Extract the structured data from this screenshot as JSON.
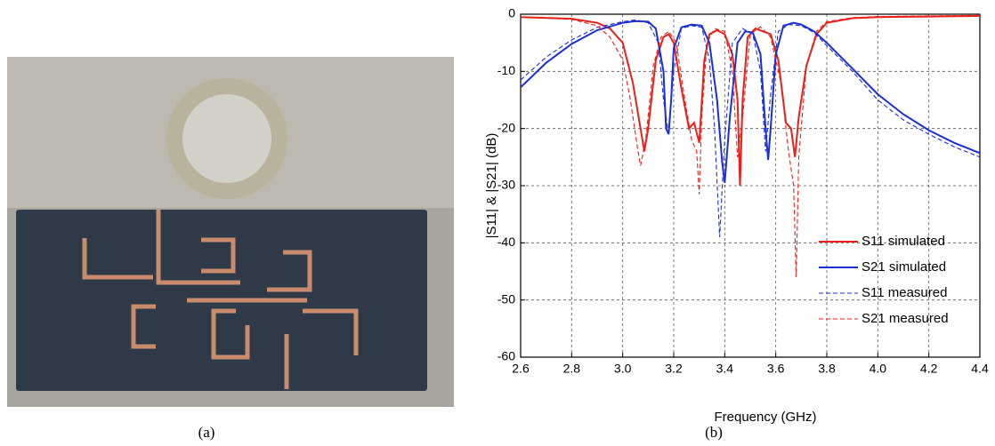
{
  "photo": {
    "caption": "(a)"
  },
  "chart_data": {
    "type": "line",
    "caption": "(b)",
    "xlabel": "Frequency (GHz)",
    "ylabel": "|S11| & |S21| (dB)",
    "xlim": [
      2.6,
      4.4
    ],
    "ylim": [
      -60,
      0
    ],
    "xticks": [
      2.6,
      2.8,
      {
        "value": 3,
        "label": "3.0"
      },
      3.2,
      3.4,
      3.6,
      3.8,
      {
        "value": 4,
        "label": "4.0"
      },
      4.2,
      4.4
    ],
    "yticks": [
      -60,
      -50,
      -40,
      -30,
      -20,
      -10,
      0
    ],
    "grid": true,
    "legend": "lower right",
    "series": [
      {
        "name": "S11 simulated",
        "color": "#e8201a",
        "dash": false,
        "x": [
          2.6,
          2.8,
          2.9,
          2.95,
          3.0,
          3.04,
          3.07,
          3.085,
          3.1,
          3.13,
          3.16,
          3.18,
          3.2,
          3.23,
          3.26,
          3.28,
          3.3,
          3.32,
          3.34,
          3.37,
          3.4,
          3.43,
          3.45,
          3.46,
          3.47,
          3.49,
          3.52,
          3.55,
          3.58,
          3.61,
          3.64,
          3.66,
          3.675,
          3.69,
          3.72,
          3.76,
          3.8,
          3.9,
          4.0,
          4.2,
          4.4
        ],
        "values": [
          -0.5,
          -0.8,
          -1.5,
          -2.5,
          -5,
          -12,
          -20,
          -24,
          -20,
          -8,
          -4,
          -3.5,
          -5,
          -13,
          -20,
          -19,
          -22.5,
          -8,
          -3.5,
          -2.8,
          -3.5,
          -7,
          -15,
          -30,
          -15,
          -4,
          -2.5,
          -3,
          -3.5,
          -8,
          -19,
          -20,
          -25,
          -18,
          -9,
          -3.5,
          -1.5,
          -0.7,
          -0.5,
          -0.4,
          -0.3
        ]
      },
      {
        "name": "S21 simulated",
        "color": "#1a2fd6",
        "dash": false,
        "x": [
          2.6,
          2.7,
          2.8,
          2.9,
          3.0,
          3.05,
          3.1,
          3.13,
          3.16,
          3.17,
          3.18,
          3.19,
          3.2,
          3.23,
          3.27,
          3.31,
          3.34,
          3.37,
          3.39,
          3.4,
          3.42,
          3.45,
          3.48,
          3.51,
          3.54,
          3.56,
          3.57,
          3.58,
          3.6,
          3.63,
          3.67,
          3.7,
          3.75,
          3.8,
          3.9,
          4.0,
          4.1,
          4.2,
          4.3,
          4.4
        ],
        "values": [
          -12.8,
          -8.5,
          -5.2,
          -2.8,
          -1.5,
          -1.2,
          -1.3,
          -2.5,
          -10,
          -20,
          -21,
          -15,
          -6,
          -2.3,
          -1.8,
          -2,
          -5,
          -15,
          -26,
          -29.5,
          -18,
          -5,
          -3,
          -3.2,
          -7,
          -20,
          -25.5,
          -20,
          -7,
          -2,
          -1.5,
          -1.8,
          -3,
          -5,
          -9.5,
          -14,
          -17.5,
          -20.3,
          -22.5,
          -24.3
        ]
      },
      {
        "name": "S11 measured",
        "color": "#1a2fd6",
        "dash": true,
        "x": [
          2.6,
          2.7,
          2.8,
          2.9,
          3.0,
          3.05,
          3.1,
          3.14,
          3.16,
          3.18,
          3.2,
          3.23,
          3.27,
          3.31,
          3.34,
          3.36,
          3.38,
          3.4,
          3.43,
          3.47,
          3.51,
          3.54,
          3.56,
          3.58,
          3.61,
          3.65,
          3.7,
          3.75,
          3.8,
          3.9,
          4.0,
          4.1,
          4.2,
          4.3,
          4.4
        ],
        "values": [
          -11.5,
          -7.5,
          -4.5,
          -2.3,
          -1.3,
          -1,
          -1.5,
          -5,
          -15,
          -21,
          -10,
          -2.5,
          -2,
          -2.3,
          -8,
          -20,
          -39,
          -22,
          -5,
          -2.5,
          -3.5,
          -10,
          -24,
          -14,
          -3,
          -1.8,
          -2,
          -3.2,
          -5.5,
          -10,
          -15,
          -18.5,
          -21,
          -23.2,
          -25
        ]
      },
      {
        "name": "S21 measured",
        "color": "#e8201a",
        "dash": true,
        "x": [
          2.6,
          2.8,
          2.9,
          2.95,
          3.0,
          3.03,
          3.06,
          3.07,
          3.09,
          3.12,
          3.15,
          3.18,
          3.21,
          3.24,
          3.27,
          3.29,
          3.3,
          3.31,
          3.33,
          3.36,
          3.4,
          3.43,
          3.45,
          3.47,
          3.5,
          3.54,
          3.58,
          3.62,
          3.65,
          3.67,
          3.68,
          3.69,
          3.72,
          3.76,
          3.8,
          3.9,
          4.0,
          4.2,
          4.4
        ],
        "values": [
          -0.5,
          -0.9,
          -2,
          -4,
          -8,
          -15,
          -24,
          -26.5,
          -22,
          -9,
          -4,
          -3,
          -5,
          -14,
          -22,
          -24,
          -31.5,
          -18,
          -5,
          -2.5,
          -3,
          -10,
          -25,
          -18,
          -3.5,
          -2.2,
          -4,
          -12,
          -24,
          -30,
          -46,
          -25,
          -9,
          -3,
          -1.3,
          -0.6,
          -0.4,
          -0.3,
          -0.2
        ]
      }
    ]
  }
}
